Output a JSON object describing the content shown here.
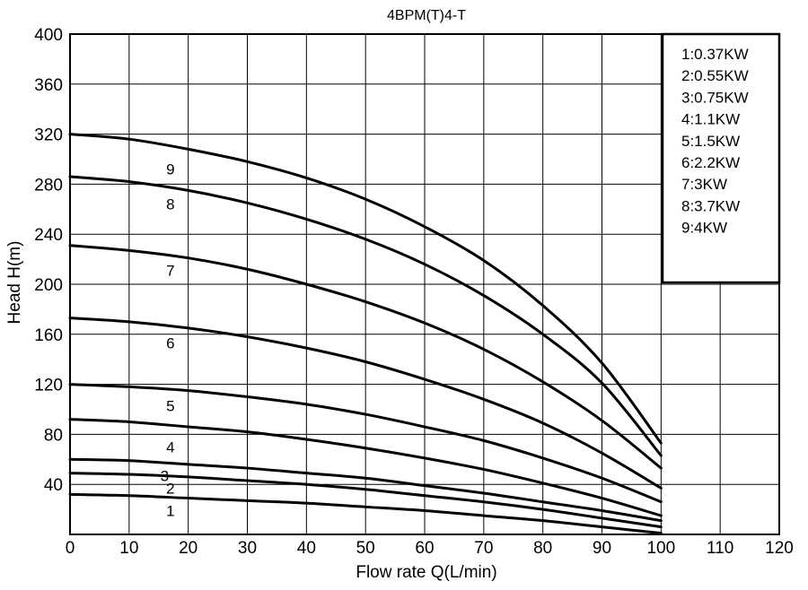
{
  "chart_data": {
    "type": "line",
    "title": "4BPM(T)4-T",
    "xlabel": "Flow rate Q(L/min)",
    "ylabel": "Head H(m)",
    "xlim": [
      0,
      120
    ],
    "ylim": [
      0,
      400
    ],
    "xticks": [
      0,
      10,
      20,
      30,
      40,
      50,
      60,
      70,
      80,
      90,
      100,
      110,
      120
    ],
    "yticks": [
      40,
      80,
      120,
      160,
      200,
      240,
      280,
      320,
      360,
      400
    ],
    "grid": true,
    "legend_position": "top-right",
    "legend": [
      "1:0.37KW",
      "2:0.55KW",
      "3:0.75KW",
      "4:1.1KW",
      "5:1.5KW",
      "6:2.2KW",
      "7:3KW",
      "8:3.7KW",
      "9:4KW"
    ],
    "series": [
      {
        "name": "1",
        "label_pos": [
          17,
          19
        ],
        "x": [
          0,
          10,
          20,
          30,
          40,
          50,
          60,
          70,
          80,
          90,
          100
        ],
        "y": [
          32,
          31,
          29,
          27,
          25,
          22,
          19,
          15,
          11,
          6,
          1
        ]
      },
      {
        "name": "2",
        "label_pos": [
          17,
          37
        ],
        "x": [
          0,
          10,
          20,
          30,
          40,
          50,
          60,
          70,
          80,
          90,
          100
        ],
        "y": [
          49,
          48,
          46,
          43,
          40,
          36,
          31,
          26,
          20,
          13,
          6
        ]
      },
      {
        "name": "3",
        "label_pos": [
          16,
          47
        ],
        "x": [
          0,
          10,
          20,
          30,
          40,
          50,
          60,
          70,
          80,
          90,
          100
        ],
        "y": [
          60,
          59,
          56,
          53,
          49,
          45,
          39,
          33,
          26,
          19,
          11
        ]
      },
      {
        "name": "4",
        "label_pos": [
          17,
          70
        ],
        "x": [
          0,
          10,
          20,
          30,
          40,
          50,
          60,
          70,
          80,
          90,
          100
        ],
        "y": [
          92,
          90,
          86,
          82,
          76,
          69,
          61,
          52,
          41,
          29,
          15
        ]
      },
      {
        "name": "5",
        "label_pos": [
          17,
          103
        ],
        "x": [
          0,
          10,
          20,
          30,
          40,
          50,
          60,
          70,
          80,
          90,
          100
        ],
        "y": [
          120,
          118,
          115,
          110,
          104,
          96,
          86,
          75,
          61,
          45,
          26
        ]
      },
      {
        "name": "6",
        "label_pos": [
          17,
          153
        ],
        "x": [
          0,
          10,
          20,
          30,
          40,
          50,
          60,
          70,
          80,
          90,
          100
        ],
        "y": [
          173,
          170,
          165,
          158,
          149,
          138,
          124,
          108,
          89,
          65,
          37
        ]
      },
      {
        "name": "7",
        "label_pos": [
          17,
          211
        ],
        "x": [
          0,
          10,
          20,
          30,
          40,
          50,
          60,
          70,
          80,
          90,
          100
        ],
        "y": [
          231,
          227,
          221,
          212,
          200,
          186,
          169,
          148,
          122,
          91,
          53
        ]
      },
      {
        "name": "8",
        "label_pos": [
          17,
          264
        ],
        "x": [
          0,
          10,
          20,
          30,
          40,
          50,
          60,
          70,
          80,
          90,
          100
        ],
        "y": [
          286,
          282,
          275,
          265,
          252,
          236,
          216,
          191,
          160,
          121,
          63
        ]
      },
      {
        "name": "9",
        "label_pos": [
          17,
          292
        ],
        "x": [
          0,
          10,
          20,
          30,
          40,
          50,
          60,
          70,
          80,
          90,
          100
        ],
        "y": [
          320,
          316,
          308,
          298,
          285,
          268,
          246,
          219,
          183,
          137,
          73
        ]
      }
    ]
  }
}
